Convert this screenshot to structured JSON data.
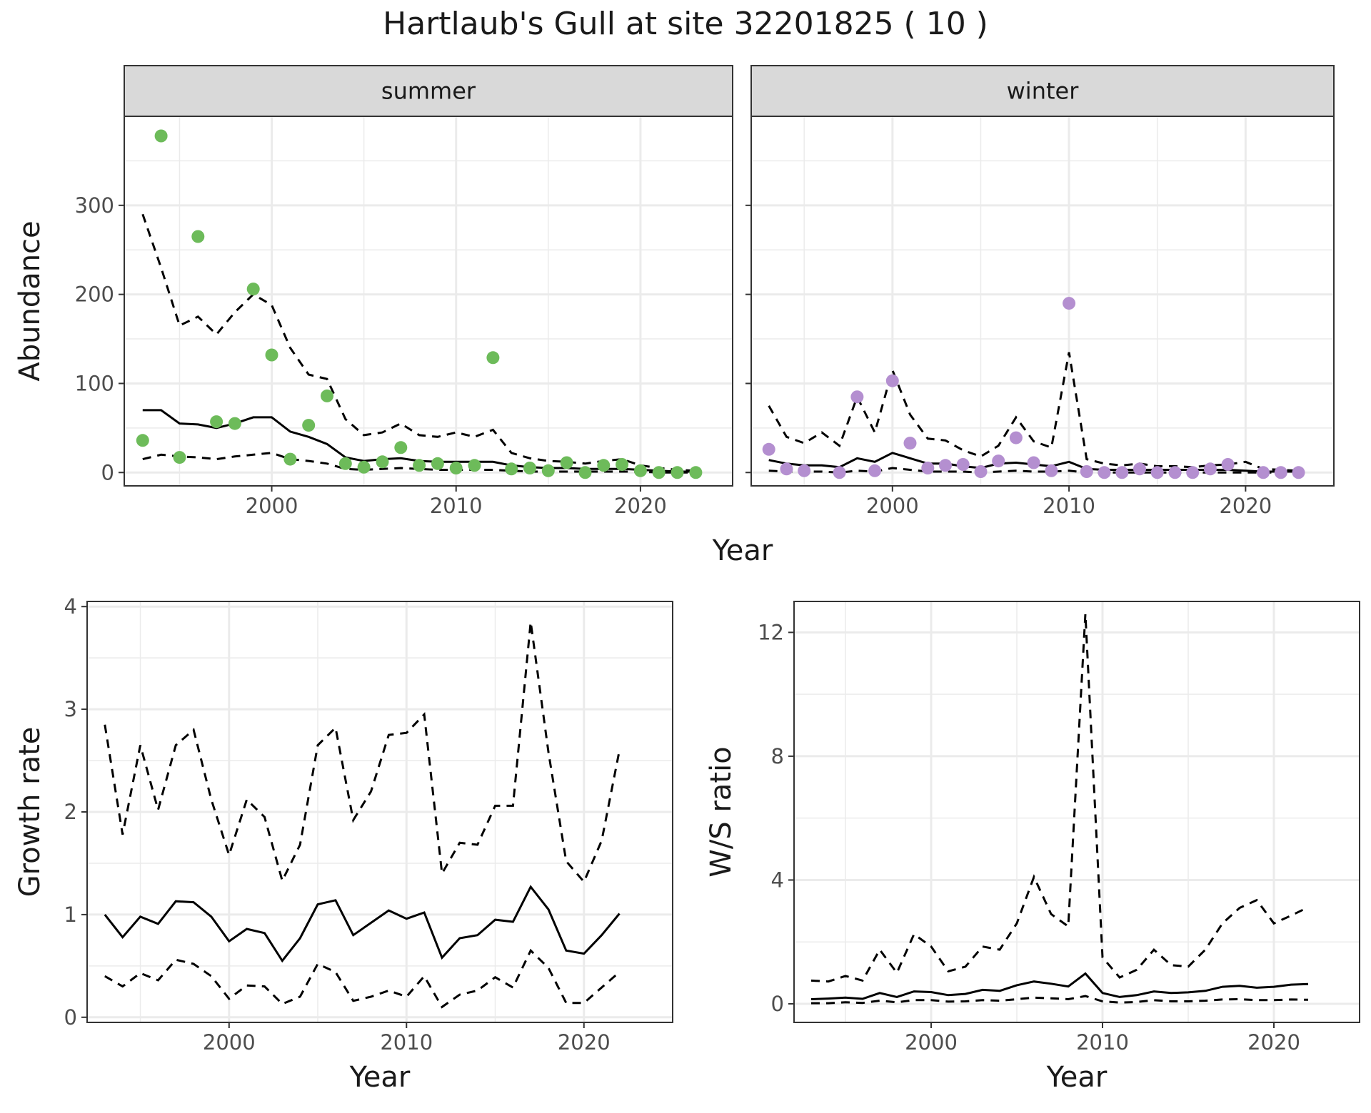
{
  "title": "Hartlaub's Gull at site 32201825 ( 10 )",
  "colors": {
    "summer_points": "#6dbb5a",
    "winter_points": "#b48fd0",
    "strip_bg": "#d9d9d9",
    "grid": "#ebebeb",
    "line": "#000000"
  },
  "chart_data": [
    {
      "id": "abundance",
      "type": "scatter",
      "facets": [
        "summer",
        "winter"
      ],
      "xlabel": "Year",
      "ylabel": "Abundance",
      "xlim": [
        1992,
        2025
      ],
      "ylim": [
        -15,
        400
      ],
      "xticks": [
        2000,
        2010,
        2020
      ],
      "yticks": [
        0,
        100,
        200,
        300
      ],
      "grid": true,
      "summer": {
        "x": [
          1993,
          1994,
          1995,
          1996,
          1997,
          1998,
          1999,
          2000,
          2001,
          2002,
          2003,
          2004,
          2005,
          2006,
          2007,
          2008,
          2009,
          2010,
          2011,
          2012,
          2013,
          2014,
          2015,
          2016,
          2017,
          2018,
          2019,
          2020,
          2021,
          2022,
          2023
        ],
        "points": [
          36,
          378,
          17,
          265,
          57,
          55,
          206,
          132,
          15,
          53,
          86,
          10,
          6,
          12,
          28,
          8,
          10,
          5,
          8,
          129,
          4,
          5,
          2,
          11,
          0,
          8,
          9,
          2,
          0,
          0,
          0
        ],
        "mean": [
          70,
          70,
          55,
          54,
          50,
          55,
          62,
          62,
          46,
          40,
          32,
          17,
          13,
          15,
          16,
          13,
          12,
          12,
          12,
          12,
          8,
          6,
          5,
          5,
          4,
          4,
          4,
          3,
          2,
          1,
          1
        ],
        "upper": [
          290,
          230,
          165,
          175,
          155,
          180,
          200,
          188,
          140,
          110,
          105,
          60,
          42,
          45,
          55,
          42,
          40,
          45,
          40,
          48,
          22,
          16,
          13,
          12,
          10,
          13,
          15,
          8,
          5,
          3,
          2
        ],
        "lower": [
          15,
          20,
          18,
          17,
          15,
          18,
          20,
          22,
          15,
          13,
          10,
          4,
          3,
          4,
          5,
          4,
          3,
          3,
          3,
          3,
          2,
          1,
          1,
          1,
          1,
          1,
          1,
          1,
          0,
          0,
          0
        ]
      },
      "winter": {
        "x": [
          1993,
          1994,
          1995,
          1996,
          1997,
          1998,
          1999,
          2000,
          2001,
          2002,
          2003,
          2004,
          2005,
          2006,
          2007,
          2008,
          2009,
          2010,
          2011,
          2012,
          2013,
          2014,
          2015,
          2016,
          2017,
          2018,
          2019,
          2020,
          2021,
          2022,
          2023
        ],
        "points": [
          26,
          4,
          2,
          null,
          0,
          85,
          2,
          103,
          33,
          5,
          8,
          9,
          1,
          13,
          39,
          11,
          2,
          190,
          1,
          0,
          0,
          4,
          0,
          0,
          0,
          4,
          9,
          null,
          0,
          0,
          0
        ],
        "mean": [
          14,
          10,
          8,
          8,
          6,
          16,
          12,
          22,
          16,
          10,
          10,
          7,
          5,
          10,
          11,
          9,
          7,
          12,
          4,
          3,
          3,
          3,
          3,
          3,
          3,
          3,
          3,
          2,
          1,
          1,
          1
        ],
        "upper": [
          75,
          40,
          33,
          45,
          30,
          85,
          45,
          115,
          65,
          38,
          36,
          25,
          18,
          30,
          62,
          35,
          28,
          135,
          15,
          10,
          8,
          10,
          7,
          7,
          6,
          8,
          9,
          12,
          4,
          3,
          2
        ],
        "lower": [
          2,
          1,
          1,
          1,
          0,
          2,
          1,
          5,
          3,
          1,
          1,
          1,
          0,
          1,
          2,
          1,
          1,
          2,
          0,
          0,
          0,
          0,
          0,
          0,
          0,
          0,
          0,
          0,
          0,
          0,
          0
        ]
      }
    },
    {
      "id": "growth",
      "type": "line",
      "xlabel": "Year",
      "ylabel": "Growth rate",
      "xlim": [
        1992,
        2025
      ],
      "ylim": [
        -0.05,
        4.05
      ],
      "xticks": [
        2000,
        2010,
        2020
      ],
      "yticks": [
        0,
        1,
        2,
        3,
        4
      ],
      "grid": true,
      "x": [
        1993,
        1994,
        1995,
        1996,
        1997,
        1998,
        1999,
        2000,
        2001,
        2002,
        2003,
        2004,
        2005,
        2006,
        2007,
        2008,
        2009,
        2010,
        2011,
        2012,
        2013,
        2014,
        2015,
        2016,
        2017,
        2018,
        2019,
        2020,
        2021,
        2022
      ],
      "mean": [
        1.0,
        0.78,
        0.98,
        0.91,
        1.13,
        1.12,
        0.98,
        0.74,
        0.86,
        0.82,
        0.55,
        0.77,
        1.1,
        1.14,
        0.8,
        0.92,
        1.04,
        0.96,
        1.02,
        0.58,
        0.77,
        0.8,
        0.95,
        0.93,
        1.27,
        1.05,
        0.65,
        0.62,
        0.8,
        1.01
      ],
      "upper": [
        2.85,
        1.78,
        2.65,
        2.02,
        2.65,
        2.8,
        2.12,
        1.58,
        2.12,
        1.95,
        1.33,
        1.68,
        2.65,
        2.82,
        1.92,
        2.2,
        2.75,
        2.77,
        2.95,
        1.4,
        1.7,
        1.68,
        2.06,
        2.06,
        3.85,
        2.58,
        1.52,
        1.32,
        1.72,
        2.6
      ],
      "lower": [
        0.4,
        0.3,
        0.43,
        0.36,
        0.56,
        0.52,
        0.4,
        0.18,
        0.31,
        0.3,
        0.13,
        0.2,
        0.52,
        0.44,
        0.16,
        0.2,
        0.26,
        0.2,
        0.4,
        0.1,
        0.22,
        0.26,
        0.39,
        0.29,
        0.65,
        0.48,
        0.14,
        0.14,
        0.29,
        0.44
      ]
    },
    {
      "id": "ws_ratio",
      "type": "line",
      "xlabel": "Year",
      "ylabel": "W/S ratio",
      "xlim": [
        1992,
        2025
      ],
      "ylim": [
        -0.6,
        13.0
      ],
      "xticks": [
        2000,
        2010,
        2020
      ],
      "yticks": [
        0,
        4,
        8,
        12
      ],
      "grid": true,
      "x": [
        1993,
        1994,
        1995,
        1996,
        1997,
        1998,
        1999,
        2000,
        2001,
        2002,
        2003,
        2004,
        2005,
        2006,
        2007,
        2008,
        2009,
        2010,
        2011,
        2012,
        2013,
        2014,
        2015,
        2016,
        2017,
        2018,
        2019,
        2020,
        2021,
        2022
      ],
      "mean": [
        0.15,
        0.17,
        0.2,
        0.16,
        0.35,
        0.22,
        0.4,
        0.38,
        0.28,
        0.32,
        0.45,
        0.42,
        0.6,
        0.72,
        0.65,
        0.56,
        0.98,
        0.35,
        0.22,
        0.28,
        0.4,
        0.35,
        0.37,
        0.42,
        0.55,
        0.58,
        0.52,
        0.55,
        0.62,
        0.64
      ],
      "upper": [
        0.75,
        0.72,
        0.9,
        0.75,
        1.75,
        1.0,
        2.25,
        1.85,
        1.05,
        1.2,
        1.85,
        1.75,
        2.6,
        4.1,
        2.9,
        2.5,
        12.6,
        1.5,
        0.85,
        1.1,
        1.75,
        1.25,
        1.2,
        1.75,
        2.6,
        3.1,
        3.35,
        2.6,
        2.85,
        3.12
      ],
      "lower": [
        0.02,
        0.02,
        0.05,
        0.03,
        0.1,
        0.05,
        0.12,
        0.12,
        0.07,
        0.08,
        0.12,
        0.1,
        0.15,
        0.2,
        0.18,
        0.15,
        0.25,
        0.08,
        0.04,
        0.06,
        0.12,
        0.08,
        0.08,
        0.1,
        0.14,
        0.15,
        0.12,
        0.12,
        0.14,
        0.13
      ]
    }
  ]
}
